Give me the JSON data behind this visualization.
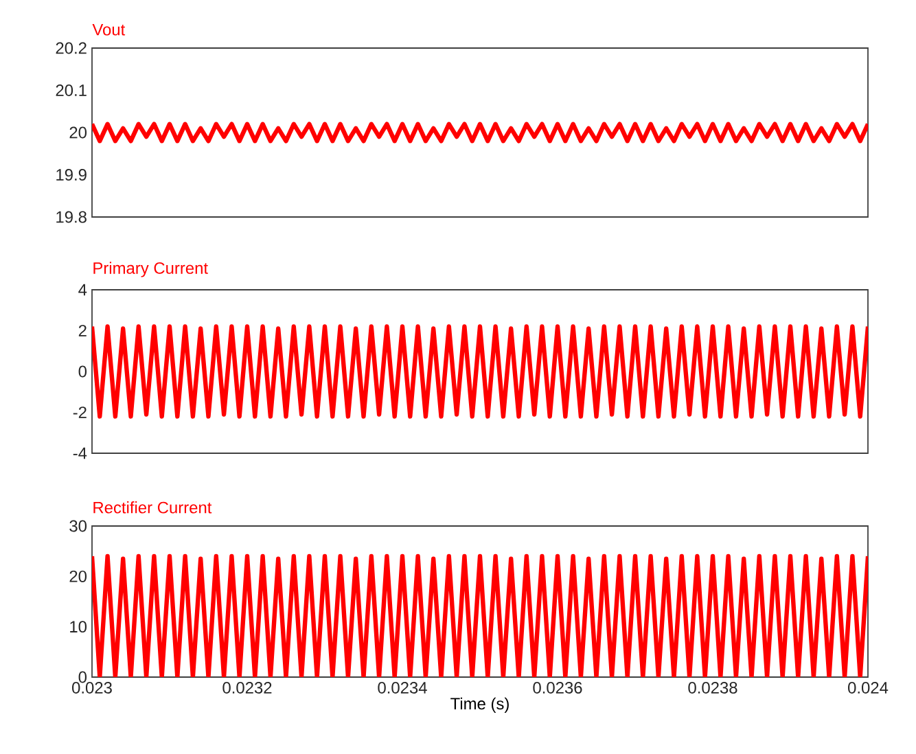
{
  "chart_data": [
    {
      "type": "line",
      "xlim": [
        0.023,
        0.024
      ],
      "ylim": [
        19.8,
        20.2
      ],
      "yticks": [
        19.8,
        19.9,
        20,
        20.1,
        20.2
      ],
      "tick_labels": "y",
      "x": [
        0.023,
        0.02301,
        0.02302,
        0.02303,
        0.02304,
        0.02305,
        0.02306,
        0.02307,
        0.02308,
        0.02309,
        0.0231,
        0.02311,
        0.02312,
        0.02313,
        0.02314,
        0.02315,
        0.02316,
        0.02317,
        0.02318,
        0.02319,
        0.0232,
        0.02321,
        0.02322,
        0.02323,
        0.02324,
        0.02325,
        0.02326,
        0.02327,
        0.02328,
        0.02329,
        0.0233,
        0.02331,
        0.02332,
        0.02333,
        0.02334,
        0.02335,
        0.02336,
        0.02337,
        0.02338,
        0.02339,
        0.0234,
        0.02341,
        0.02342,
        0.02343,
        0.02344,
        0.02345,
        0.02346,
        0.02347,
        0.02348,
        0.02349,
        0.0235,
        0.02351,
        0.02352,
        0.02353,
        0.02354,
        0.02355,
        0.02356,
        0.02357,
        0.02358,
        0.02359,
        0.0236,
        0.02361,
        0.02362,
        0.02363,
        0.02364,
        0.02365,
        0.02366,
        0.02367,
        0.02368,
        0.02369,
        0.0237,
        0.02371,
        0.02372,
        0.02373,
        0.02374,
        0.02375,
        0.02376,
        0.02377,
        0.02378,
        0.02379,
        0.0238,
        0.02381,
        0.02382,
        0.02383,
        0.02384,
        0.02385,
        0.02386,
        0.02387,
        0.02388,
        0.02389,
        0.0239,
        0.02391,
        0.02392,
        0.02393,
        0.02394,
        0.02395,
        0.02396,
        0.02397,
        0.02398,
        0.02399,
        0.024
      ],
      "series": [
        {
          "name": "Vout",
          "color": "#ff0000",
          "values": [
            20.02,
            19.98,
            20.02,
            19.98,
            20.01,
            19.98,
            20.02,
            19.99,
            20.02,
            19.98,
            20.02,
            19.98,
            20.02,
            19.98,
            20.01,
            19.98,
            20.02,
            19.99,
            20.02,
            19.98,
            20.02,
            19.98,
            20.02,
            19.98,
            20.01,
            19.98,
            20.02,
            19.99,
            20.02,
            19.98,
            20.02,
            19.98,
            20.02,
            19.98,
            20.01,
            19.98,
            20.02,
            19.99,
            20.02,
            19.98,
            20.02,
            19.98,
            20.02,
            19.98,
            20.01,
            19.98,
            20.02,
            19.99,
            20.02,
            19.98,
            20.02,
            19.98,
            20.02,
            19.98,
            20.01,
            19.98,
            20.02,
            19.99,
            20.02,
            19.98,
            20.02,
            19.98,
            20.02,
            19.98,
            20.01,
            19.98,
            20.02,
            19.99,
            20.02,
            19.98,
            20.02,
            19.98,
            20.02,
            19.98,
            20.01,
            19.98,
            20.02,
            19.99,
            20.02,
            19.98,
            20.02,
            19.98,
            20.02,
            19.98,
            20.01,
            19.98,
            20.02,
            19.99,
            20.02,
            19.98,
            20.02,
            19.98,
            20.02,
            19.98,
            20.01,
            19.98,
            20.02,
            19.99,
            20.02,
            19.98,
            20.02
          ]
        }
      ]
    },
    {
      "type": "line",
      "xlim": [
        0.023,
        0.024
      ],
      "ylim": [
        -4,
        4
      ],
      "yticks": [
        -4,
        -2,
        0,
        2,
        4
      ],
      "tick_labels": "y",
      "x": [
        0.023,
        0.02301,
        0.02302,
        0.02303,
        0.02304,
        0.02305,
        0.02306,
        0.02307,
        0.02308,
        0.02309,
        0.0231,
        0.02311,
        0.02312,
        0.02313,
        0.02314,
        0.02315,
        0.02316,
        0.02317,
        0.02318,
        0.02319,
        0.0232,
        0.02321,
        0.02322,
        0.02323,
        0.02324,
        0.02325,
        0.02326,
        0.02327,
        0.02328,
        0.02329,
        0.0233,
        0.02331,
        0.02332,
        0.02333,
        0.02334,
        0.02335,
        0.02336,
        0.02337,
        0.02338,
        0.02339,
        0.0234,
        0.02341,
        0.02342,
        0.02343,
        0.02344,
        0.02345,
        0.02346,
        0.02347,
        0.02348,
        0.02349,
        0.0235,
        0.02351,
        0.02352,
        0.02353,
        0.02354,
        0.02355,
        0.02356,
        0.02357,
        0.02358,
        0.02359,
        0.0236,
        0.02361,
        0.02362,
        0.02363,
        0.02364,
        0.02365,
        0.02366,
        0.02367,
        0.02368,
        0.02369,
        0.0237,
        0.02371,
        0.02372,
        0.02373,
        0.02374,
        0.02375,
        0.02376,
        0.02377,
        0.02378,
        0.02379,
        0.0238,
        0.02381,
        0.02382,
        0.02383,
        0.02384,
        0.02385,
        0.02386,
        0.02387,
        0.02388,
        0.02389,
        0.0239,
        0.02391,
        0.02392,
        0.02393,
        0.02394,
        0.02395,
        0.02396,
        0.02397,
        0.02398,
        0.02399,
        0.024
      ],
      "series": [
        {
          "name": "Primary Current",
          "color": "#ff0000",
          "values": [
            2.2,
            -2.2,
            2.2,
            -2.2,
            2.1,
            -2.2,
            2.2,
            -2.1,
            2.2,
            -2.2,
            2.2,
            -2.2,
            2.2,
            -2.2,
            2.1,
            -2.2,
            2.2,
            -2.1,
            2.2,
            -2.2,
            2.2,
            -2.2,
            2.2,
            -2.2,
            2.1,
            -2.2,
            2.2,
            -2.1,
            2.2,
            -2.2,
            2.2,
            -2.2,
            2.2,
            -2.2,
            2.1,
            -2.2,
            2.2,
            -2.1,
            2.2,
            -2.2,
            2.2,
            -2.2,
            2.2,
            -2.2,
            2.1,
            -2.2,
            2.2,
            -2.1,
            2.2,
            -2.2,
            2.2,
            -2.2,
            2.2,
            -2.2,
            2.1,
            -2.2,
            2.2,
            -2.1,
            2.2,
            -2.2,
            2.2,
            -2.2,
            2.2,
            -2.2,
            2.1,
            -2.2,
            2.2,
            -2.1,
            2.2,
            -2.2,
            2.2,
            -2.2,
            2.2,
            -2.2,
            2.1,
            -2.2,
            2.2,
            -2.1,
            2.2,
            -2.2,
            2.2,
            -2.2,
            2.2,
            -2.2,
            2.1,
            -2.2,
            2.2,
            -2.1,
            2.2,
            -2.2,
            2.2,
            -2.2,
            2.2,
            -2.2,
            2.1,
            -2.2,
            2.2,
            -2.1,
            2.2,
            -2.2,
            2.2
          ]
        }
      ]
    },
    {
      "type": "line",
      "xlim": [
        0.023,
        0.024
      ],
      "ylim": [
        0,
        30
      ],
      "yticks": [
        0,
        10,
        20,
        30
      ],
      "xticks": [
        0.023,
        0.0232,
        0.0234,
        0.0236,
        0.0238,
        0.024
      ],
      "xlabel": "Time (s)",
      "x": [
        0.023,
        0.02301,
        0.02302,
        0.02303,
        0.02304,
        0.02305,
        0.02306,
        0.02307,
        0.02308,
        0.02309,
        0.0231,
        0.02311,
        0.02312,
        0.02313,
        0.02314,
        0.02315,
        0.02316,
        0.02317,
        0.02318,
        0.02319,
        0.0232,
        0.02321,
        0.02322,
        0.02323,
        0.02324,
        0.02325,
        0.02326,
        0.02327,
        0.02328,
        0.02329,
        0.0233,
        0.02331,
        0.02332,
        0.02333,
        0.02334,
        0.02335,
        0.02336,
        0.02337,
        0.02338,
        0.02339,
        0.0234,
        0.02341,
        0.02342,
        0.02343,
        0.02344,
        0.02345,
        0.02346,
        0.02347,
        0.02348,
        0.02349,
        0.0235,
        0.02351,
        0.02352,
        0.02353,
        0.02354,
        0.02355,
        0.02356,
        0.02357,
        0.02358,
        0.02359,
        0.0236,
        0.02361,
        0.02362,
        0.02363,
        0.02364,
        0.02365,
        0.02366,
        0.02367,
        0.02368,
        0.02369,
        0.0237,
        0.02371,
        0.02372,
        0.02373,
        0.02374,
        0.02375,
        0.02376,
        0.02377,
        0.02378,
        0.02379,
        0.0238,
        0.02381,
        0.02382,
        0.02383,
        0.02384,
        0.02385,
        0.02386,
        0.02387,
        0.02388,
        0.02389,
        0.0239,
        0.02391,
        0.02392,
        0.02393,
        0.02394,
        0.02395,
        0.02396,
        0.02397,
        0.02398,
        0.02399,
        0.024
      ],
      "series": [
        {
          "name": "Rectifier Current",
          "color": "#ff0000",
          "values": [
            24,
            0,
            24,
            0,
            23.5,
            0,
            24,
            0,
            24,
            0,
            24,
            0,
            24,
            0,
            23.5,
            0,
            24,
            0,
            24,
            0,
            24,
            0,
            24,
            0,
            23.5,
            0,
            24,
            0,
            24,
            0,
            24,
            0,
            24,
            0,
            23.5,
            0,
            24,
            0,
            24,
            0,
            24,
            0,
            24,
            0,
            23.5,
            0,
            24,
            0,
            24,
            0,
            24,
            0,
            24,
            0,
            23.5,
            0,
            24,
            0,
            24,
            0,
            24,
            0,
            24,
            0,
            23.5,
            0,
            24,
            0,
            24,
            0,
            24,
            0,
            24,
            0,
            23.5,
            0,
            24,
            0,
            24,
            0,
            24,
            0,
            24,
            0,
            23.5,
            0,
            24,
            0,
            24,
            0,
            24,
            0,
            24,
            0,
            23.5,
            0,
            24,
            0,
            24,
            0,
            24
          ]
        }
      ]
    }
  ]
}
